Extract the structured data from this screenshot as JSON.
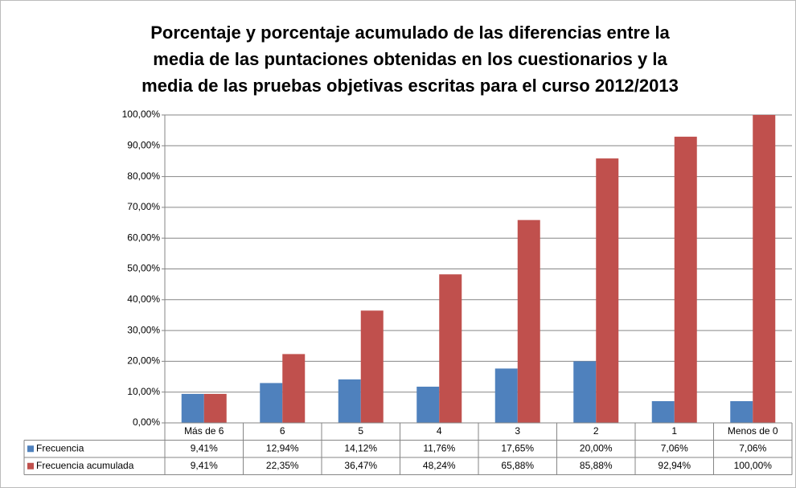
{
  "chart_data": {
    "type": "bar",
    "title": [
      "Porcentaje y porcentaje acumulado de las diferencias entre la",
      "media de las puntaciones obtenidas en los cuestionarios y la",
      "media de las pruebas objetivas escritas para el curso 2012/2013"
    ],
    "categories": [
      "Más de 6",
      "6",
      "5",
      "4",
      "3",
      "2",
      "1",
      "Menos de 0"
    ],
    "series": [
      {
        "name": "Frecuencia",
        "color": "#4f81bd",
        "values": [
          9.41,
          12.94,
          14.12,
          11.76,
          17.65,
          20.0,
          7.06,
          7.06
        ],
        "value_labels": [
          "9,41%",
          "12,94%",
          "14,12%",
          "11,76%",
          "17,65%",
          "20,00%",
          "7,06%",
          "7,06%"
        ]
      },
      {
        "name": "Frecuencia acumulada",
        "color": "#c0504d",
        "values": [
          9.41,
          22.35,
          36.47,
          48.24,
          65.88,
          85.88,
          92.94,
          100.0
        ],
        "value_labels": [
          "9,41%",
          "22,35%",
          "36,47%",
          "48,24%",
          "65,88%",
          "85,88%",
          "92,94%",
          "100,00%"
        ]
      }
    ],
    "ylim": [
      0,
      100
    ],
    "yticks": [
      {
        "value": 0,
        "label": "0,00%"
      },
      {
        "value": 10,
        "label": "10,00%"
      },
      {
        "value": 20,
        "label": "20,00%"
      },
      {
        "value": 30,
        "label": "30,00%"
      },
      {
        "value": 40,
        "label": "40,00%"
      },
      {
        "value": 50,
        "label": "50,00%"
      },
      {
        "value": 60,
        "label": "60,00%"
      },
      {
        "value": 70,
        "label": "70,00%"
      },
      {
        "value": 80,
        "label": "80,00%"
      },
      {
        "value": 90,
        "label": "90,00%"
      },
      {
        "value": 100,
        "label": "100,00%"
      }
    ],
    "grid": true
  }
}
